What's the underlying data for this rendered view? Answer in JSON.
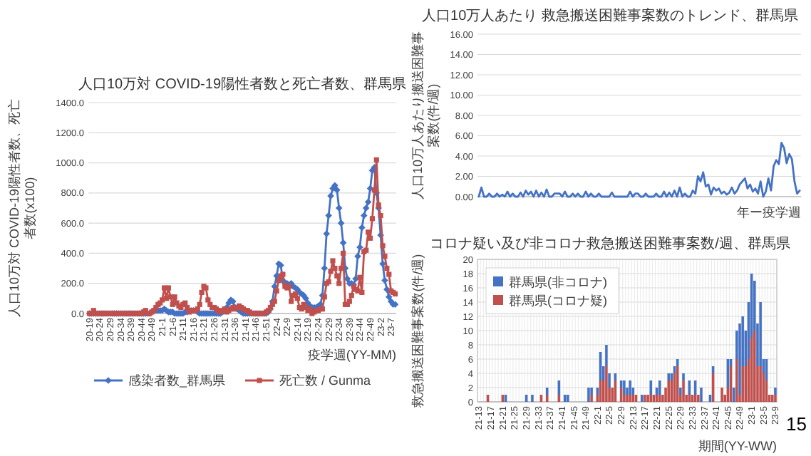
{
  "chart_data": [
    {
      "type": "line",
      "title": "人口10万対 COVID-19陽性者数と死亡者数、群馬県",
      "ylabel": "人口10万対 COVID-19陽性者数、死亡者数(x100)",
      "xlabel": "疫学週(YY-MM)",
      "grid": "y",
      "legend": "bottom",
      "categories": [
        "20-19",
        null,
        null,
        null,
        null,
        "20-24",
        null,
        null,
        null,
        null,
        "20-29",
        null,
        null,
        null,
        null,
        "20-34",
        null,
        null,
        null,
        null,
        "20-39",
        null,
        null,
        null,
        null,
        "20-44",
        null,
        null,
        null,
        null,
        "20-49",
        null,
        null,
        null,
        null,
        "21-1",
        null,
        null,
        null,
        null,
        "21-6",
        null,
        null,
        null,
        null,
        "21-11",
        null,
        null,
        null,
        null,
        "21-16",
        null,
        null,
        null,
        null,
        "21-21",
        null,
        null,
        null,
        null,
        "21-26",
        null,
        null,
        null,
        null,
        "21-31",
        null,
        null,
        null,
        null,
        "21-36",
        null,
        null,
        null,
        null,
        "21-41",
        null,
        null,
        null,
        null,
        "21-46",
        null,
        null,
        null,
        null,
        "21-51",
        null,
        null,
        null,
        null,
        "22-4",
        null,
        null,
        null,
        null,
        "22-9",
        null,
        null,
        null,
        null,
        "22-14",
        null,
        null,
        null,
        null,
        "22-19",
        null,
        null,
        null,
        null,
        "22-24",
        null,
        null,
        null,
        null,
        "22-29",
        null,
        null,
        null,
        null,
        "22-34",
        null,
        null,
        null,
        null,
        "22-39",
        null,
        null,
        null,
        null,
        "22-44",
        null,
        null,
        null,
        null,
        "22-49",
        null,
        null,
        null,
        null,
        "23-2",
        null,
        null,
        null,
        null,
        "23-7",
        null,
        null
      ],
      "ylim": [
        0,
        1400
      ],
      "yticks": [
        {
          "value": 0,
          "label": "0.0"
        },
        {
          "value": 200,
          "label": "200.0"
        },
        {
          "value": 400,
          "label": "400.0"
        },
        {
          "value": 600,
          "label": "600.0"
        },
        {
          "value": 800,
          "label": "800.0"
        },
        {
          "value": 1000,
          "label": "1000.0"
        },
        {
          "value": 1200,
          "label": "1200.0"
        },
        {
          "value": 1400,
          "label": "1400.0"
        }
      ],
      "series": [
        {
          "name": "感染者数_群馬県",
          "color": "#4472c4",
          "marker": "diamond",
          "values": [
            0,
            0,
            0,
            0,
            0,
            0,
            0,
            0,
            0,
            0,
            0,
            0,
            0,
            0,
            0,
            0,
            0,
            0,
            0,
            0,
            0,
            0,
            0,
            0,
            0,
            0,
            0,
            0,
            0,
            0,
            10,
            20,
            20,
            20,
            20,
            20,
            30,
            20,
            10,
            10,
            10,
            0,
            0,
            0,
            0,
            0,
            10,
            10,
            20,
            20,
            20,
            20,
            10,
            0,
            0,
            0,
            0,
            0,
            0,
            0,
            0,
            0,
            0,
            0,
            10,
            20,
            40,
            70,
            90,
            80,
            40,
            30,
            20,
            10,
            0,
            0,
            0,
            0,
            0,
            0,
            0,
            0,
            0,
            0,
            0,
            0,
            10,
            30,
            80,
            180,
            250,
            330,
            320,
            220,
            200,
            200,
            190,
            200,
            180,
            170,
            160,
            140,
            130,
            120,
            100,
            70,
            50,
            40,
            40,
            40,
            50,
            60,
            120,
            300,
            530,
            650,
            780,
            830,
            850,
            820,
            700,
            600,
            470,
            300,
            230,
            200,
            200,
            190,
            230,
            380,
            440,
            570,
            650,
            700,
            740,
            830,
            950,
            970,
            800,
            700,
            520,
            330,
            220,
            160,
            110,
            80,
            60,
            60
          ]
        },
        {
          "name": "死亡数 / Gunma",
          "color": "#c0504d",
          "marker": "square",
          "values": [
            0,
            0,
            20,
            0,
            0,
            0,
            0,
            0,
            0,
            0,
            0,
            0,
            0,
            0,
            0,
            0,
            0,
            0,
            0,
            0,
            0,
            0,
            0,
            0,
            0,
            0,
            10,
            20,
            0,
            0,
            10,
            20,
            40,
            60,
            70,
            90,
            170,
            100,
            170,
            110,
            60,
            110,
            70,
            50,
            40,
            60,
            70,
            40,
            10,
            20,
            20,
            20,
            30,
            60,
            140,
            180,
            170,
            90,
            60,
            40,
            40,
            30,
            20,
            10,
            20,
            30,
            10,
            20,
            30,
            40,
            30,
            40,
            50,
            40,
            30,
            20,
            20,
            10,
            0,
            0,
            0,
            0,
            0,
            0,
            0,
            10,
            20,
            40,
            60,
            80,
            150,
            220,
            250,
            260,
            180,
            170,
            180,
            80,
            120,
            130,
            100,
            40,
            30,
            60,
            40,
            20,
            30,
            0,
            10,
            20,
            20,
            30,
            30,
            110,
            200,
            210,
            280,
            350,
            300,
            250,
            200,
            300,
            400,
            60,
            60,
            80,
            120,
            180,
            160,
            150,
            240,
            140,
            410,
            420,
            540,
            500,
            630,
            820,
            1020,
            720,
            650,
            450,
            380,
            300,
            260,
            150,
            140,
            130
          ]
        }
      ]
    },
    {
      "type": "line",
      "title": "人口10万人あたり 救急搬送困難事案数のトレンド、群馬県",
      "ylabel": "人口10万人あたり搬送困難事案数(件/週)",
      "xlabel": "年ー疫学週",
      "grid": "y",
      "categories": [
        null,
        null,
        null,
        null,
        null,
        null,
        null,
        null,
        null,
        null,
        null,
        null,
        null,
        null,
        null,
        null,
        null,
        null,
        null,
        null,
        null,
        null,
        null,
        null,
        null,
        null,
        null,
        null,
        null,
        null,
        null,
        null,
        null,
        null,
        null,
        null,
        null,
        null,
        null,
        null,
        null,
        null,
        null,
        null,
        null,
        null,
        null,
        null,
        null,
        null,
        null,
        null,
        null,
        null,
        null,
        null,
        null,
        null,
        null,
        null,
        null,
        null,
        null,
        null,
        null,
        null,
        null,
        null,
        null,
        null,
        null,
        null,
        null,
        null,
        null,
        null,
        null,
        null,
        null,
        null,
        null,
        null,
        null,
        null,
        null,
        null,
        null,
        null,
        null,
        null,
        null,
        null,
        null,
        null,
        null,
        null,
        null,
        null,
        null,
        null,
        null,
        null,
        null,
        null,
        null,
        null,
        null,
        null,
        null,
        null,
        null,
        null,
        null,
        null,
        null,
        null,
        null,
        null,
        null,
        null,
        null,
        null,
        null,
        null
      ],
      "ylim": [
        0,
        16
      ],
      "yticks": [
        {
          "value": 0,
          "label": "0.00"
        },
        {
          "value": 2,
          "label": "2.00"
        },
        {
          "value": 4,
          "label": "4.00"
        },
        {
          "value": 6,
          "label": "6.00"
        },
        {
          "value": 8,
          "label": "8.00"
        },
        {
          "value": 10,
          "label": "10.00"
        },
        {
          "value": 12,
          "label": "12.00"
        },
        {
          "value": 14,
          "label": "14.00"
        },
        {
          "value": 16,
          "label": "16.00"
        }
      ],
      "series": [
        {
          "color": "#4472c4",
          "values": [
            0,
            0.9,
            0,
            0,
            0.3,
            0,
            0,
            0.3,
            0,
            0.2,
            0,
            0.5,
            0,
            0.3,
            0,
            0,
            0.4,
            0,
            0.6,
            0.2,
            0.5,
            0,
            0.6,
            0,
            0.4,
            0,
            0.7,
            0,
            0,
            0.3,
            0.3,
            0.3,
            0,
            0.5,
            0,
            0,
            0.3,
            0,
            0.3,
            0,
            0,
            0.5,
            0,
            0.3,
            0,
            0,
            0.3,
            0,
            0,
            0,
            0,
            0.4,
            0,
            0,
            0,
            0,
            0,
            0,
            0.5,
            0,
            0.3,
            0.3,
            0,
            0,
            0.3,
            0,
            0,
            0,
            0.3,
            0,
            0,
            0.5,
            0,
            0.4,
            0,
            0.6,
            0,
            0.9,
            0,
            0.3,
            0,
            0,
            0.6,
            0.3,
            2.0,
            1.5,
            2.4,
            1.0,
            1.2,
            0.2,
            0.9,
            0.6,
            0.8,
            0.3,
            0.5,
            0.2,
            0.4,
            0.9,
            0.3,
            0.6,
            1.2,
            1.5,
            1.8,
            0.8,
            1.2,
            0.5,
            0.8,
            0.3,
            1.5,
            0,
            0.5,
            1.8,
            0.6,
            3.0,
            3.6,
            3.2,
            5.3,
            4.8,
            3.3,
            4.2,
            3.7,
            1.5,
            0.3,
            0.6
          ]
        }
      ]
    },
    {
      "type": "bar",
      "stacked": true,
      "title": "コロナ疑い及び非コロナ救急搬送困難事案数/週、群馬県",
      "ylabel": "救急搬送困難事案数(件/週)",
      "xlabel": "期間(YY-WW)",
      "grid": true,
      "legend": "top left",
      "annotations": [
        "15"
      ],
      "categories": [
        "21-13",
        null,
        null,
        null,
        "21-17",
        null,
        null,
        null,
        "21-21",
        null,
        null,
        null,
        "21-25",
        null,
        null,
        null,
        "21-29",
        null,
        null,
        null,
        "21-33",
        null,
        null,
        null,
        "21-37",
        null,
        null,
        null,
        "21-41",
        null,
        null,
        null,
        "21-45",
        null,
        null,
        null,
        "21-49",
        null,
        null,
        null,
        "22-1",
        null,
        null,
        null,
        "22-5",
        null,
        null,
        null,
        "22-9",
        null,
        null,
        null,
        "22-13",
        null,
        null,
        null,
        "22-17",
        null,
        null,
        null,
        "22-21",
        null,
        null,
        null,
        "22-25",
        null,
        null,
        null,
        "22-29",
        null,
        null,
        null,
        "22-33",
        null,
        null,
        null,
        "22-37",
        null,
        null,
        null,
        "22-41",
        null,
        null,
        null,
        "22-45",
        null,
        null,
        null,
        "22-49",
        null,
        null,
        null,
        "23-1",
        null,
        null,
        null,
        "23-5",
        null,
        null,
        null,
        "23-9"
      ],
      "ylim": [
        0,
        20
      ],
      "yticks": [
        0,
        2,
        4,
        6,
        8,
        10,
        12,
        14,
        16,
        18,
        20
      ],
      "series": [
        {
          "name": "群馬県(コロナ疑)",
          "color": "#c0504d",
          "values": [
            0,
            0,
            0,
            1,
            0,
            0,
            0,
            0,
            1,
            0,
            0,
            0,
            0,
            0,
            0,
            0,
            0,
            0,
            0,
            0,
            0,
            1,
            0,
            1,
            0,
            0,
            0,
            1,
            0,
            0,
            0,
            0,
            0,
            0,
            0,
            0,
            0,
            0,
            1,
            0,
            1,
            3,
            3,
            5,
            2,
            2,
            3,
            0,
            2,
            1,
            1,
            1,
            1,
            1,
            0,
            0,
            1,
            1,
            1,
            1,
            1,
            1,
            1,
            2,
            3,
            3,
            4,
            5,
            1,
            3,
            1,
            1,
            1,
            1,
            1,
            0,
            0,
            0,
            0,
            4,
            0,
            0,
            2,
            1,
            2,
            5,
            0,
            6,
            1,
            5,
            5,
            6,
            9,
            10,
            5,
            5,
            4,
            3,
            1,
            1,
            1
          ]
        },
        {
          "name": "群馬県(非コロナ)",
          "color": "#4472c4",
          "values": [
            0,
            0,
            0,
            0,
            0,
            0,
            0,
            0,
            0,
            1,
            0,
            0,
            0,
            0,
            0,
            0,
            1,
            0,
            1,
            0,
            0,
            0,
            0,
            1,
            0,
            0,
            0,
            2,
            0,
            1,
            1,
            0,
            0,
            0,
            0,
            0,
            0,
            2,
            1,
            0,
            1,
            4,
            2,
            3,
            2,
            0,
            1,
            0,
            1,
            2,
            1,
            2,
            1,
            0,
            0,
            1,
            0,
            0,
            2,
            0,
            1,
            2,
            0,
            0,
            1,
            1,
            1,
            1,
            1,
            1,
            0,
            2,
            0,
            2,
            0,
            2,
            0,
            0,
            1,
            1,
            0,
            0,
            0,
            0,
            4,
            1,
            2,
            4,
            10,
            7,
            5,
            8,
            9,
            7,
            6,
            9,
            2,
            3,
            0,
            0,
            1
          ]
        }
      ]
    }
  ]
}
